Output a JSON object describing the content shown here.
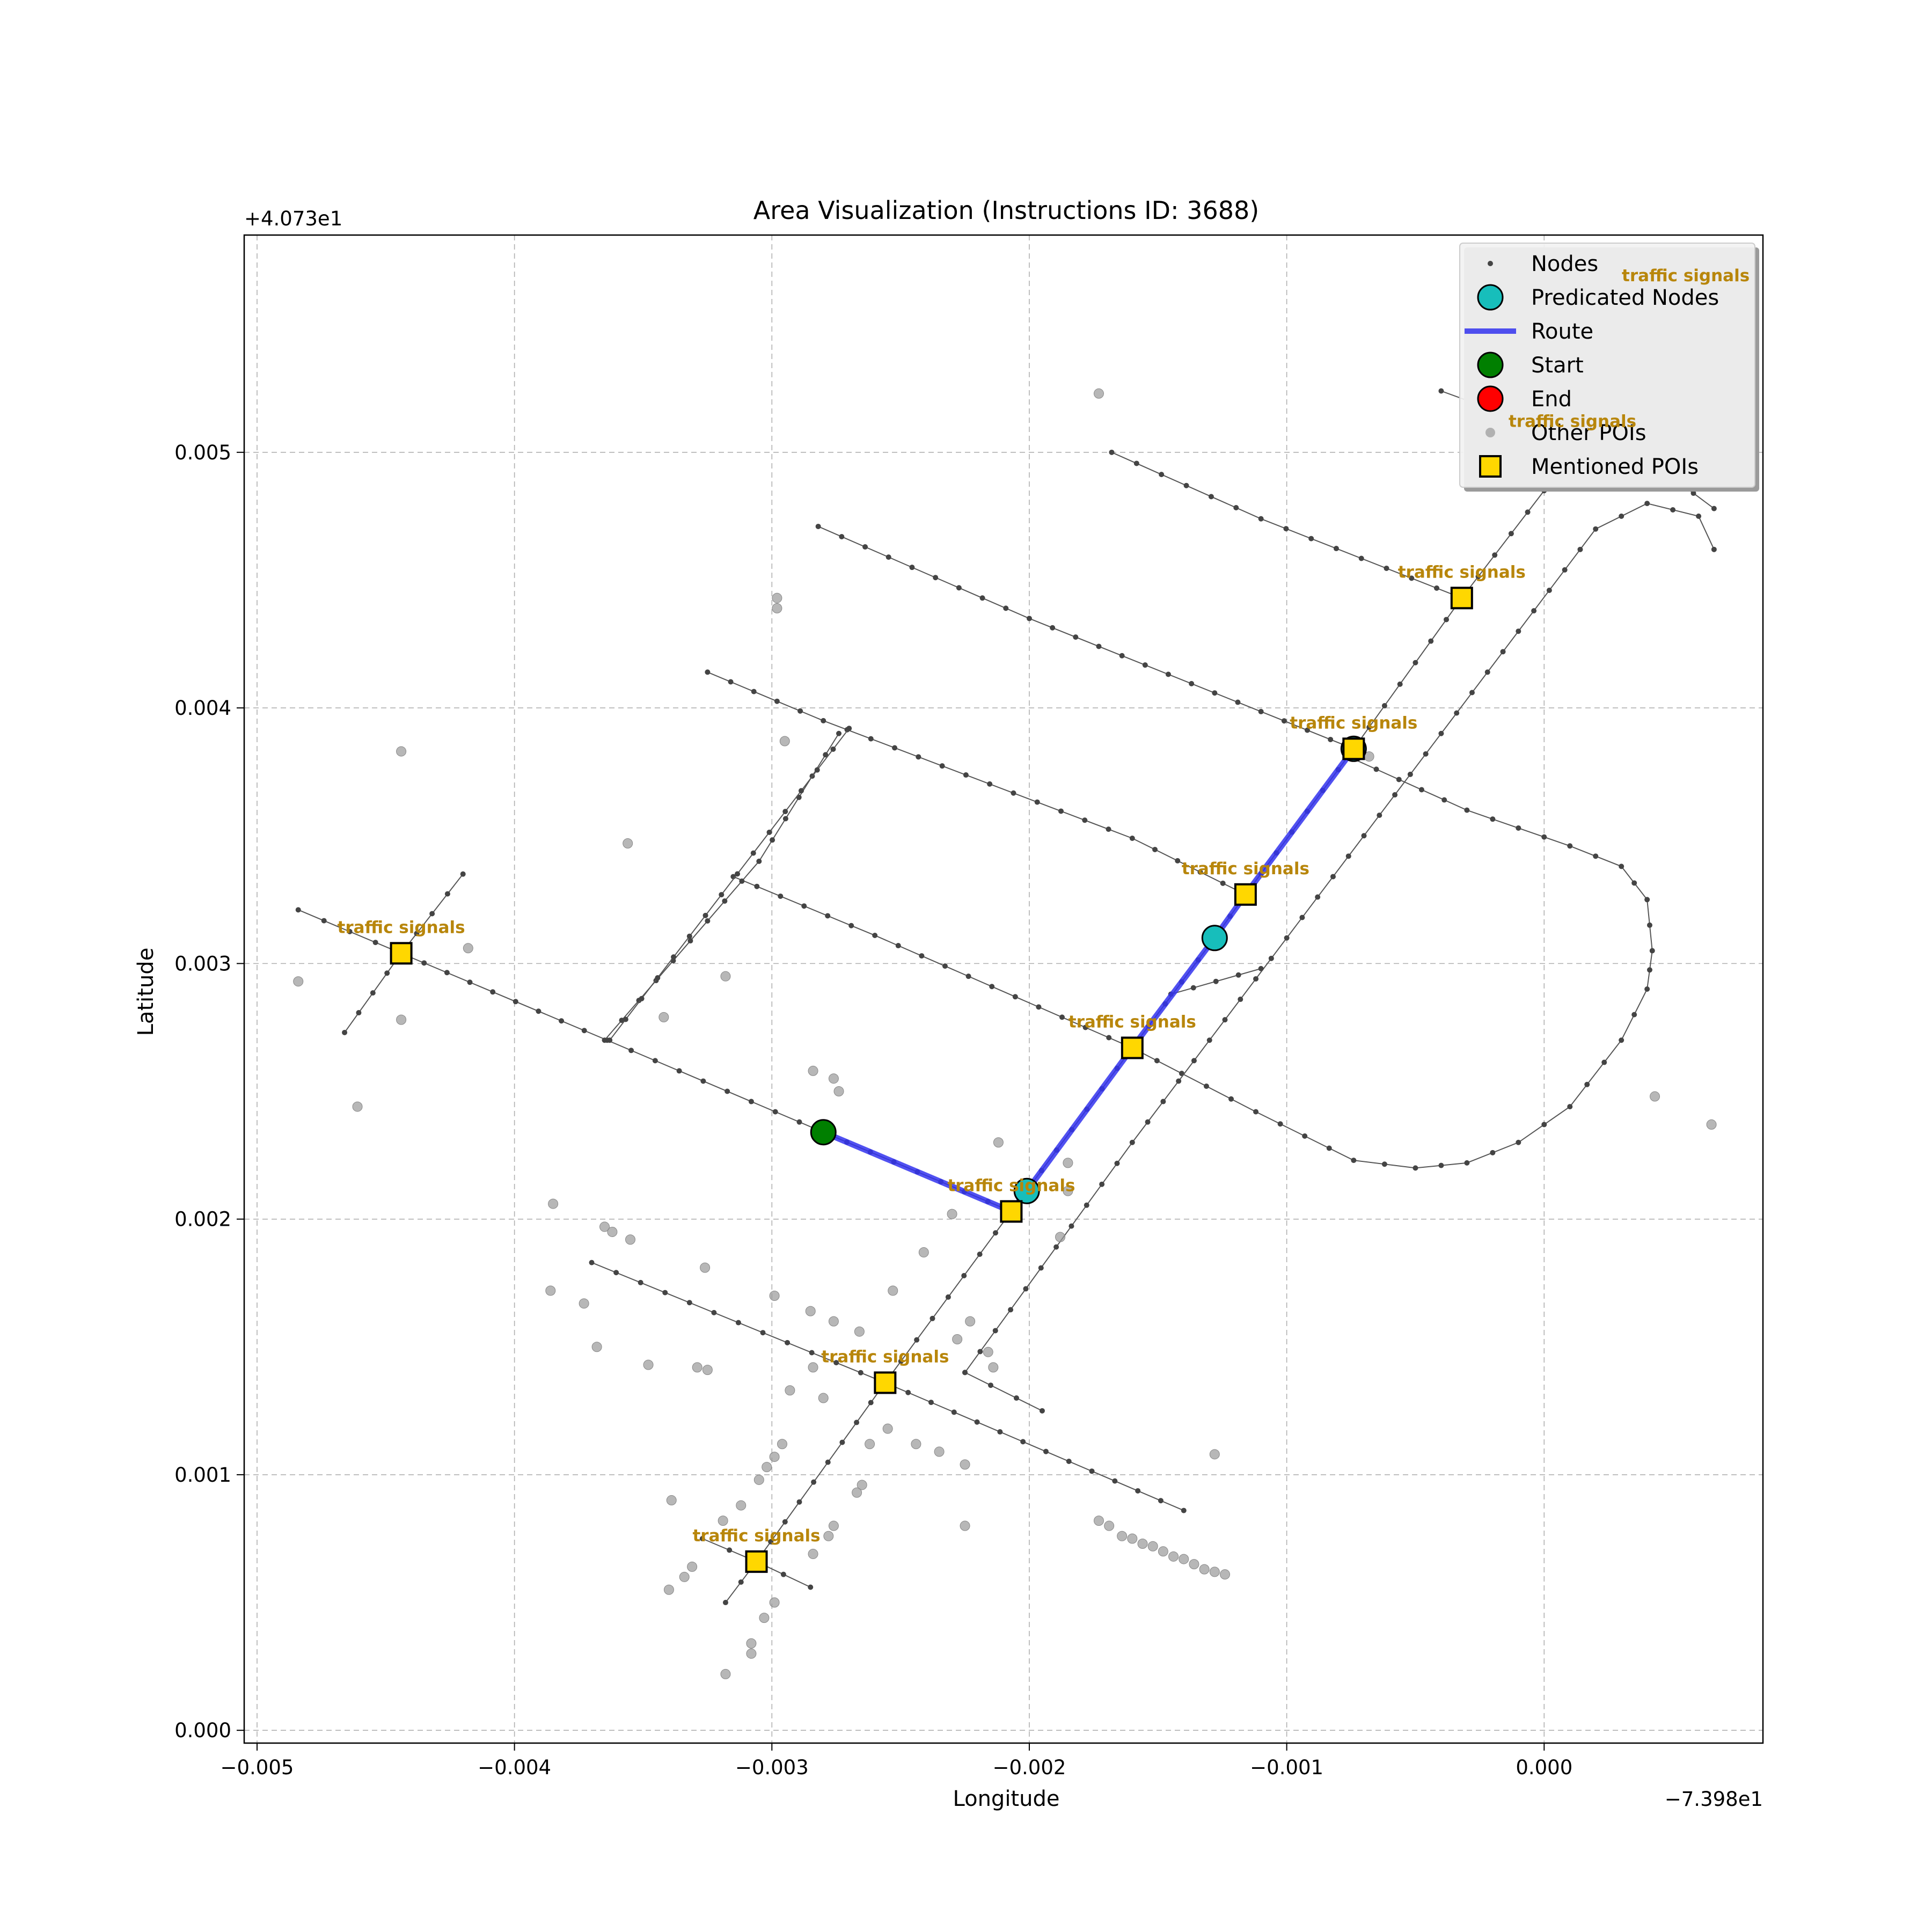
{
  "chart_data": {
    "type": "scatter",
    "title": "Area Visualization (Instructions ID: 3688)",
    "xlabel": "Longitude",
    "ylabel": "Latitude",
    "x_offset_label": "−7.398e1",
    "y_offset_label": "+4.073e1",
    "xlim": [
      -0.00505,
      0.00085
    ],
    "ylim": [
      -5e-05,
      0.00585
    ],
    "xticks": [
      -0.005,
      -0.004,
      -0.003,
      -0.002,
      -0.001,
      0.0
    ],
    "xtick_labels": [
      "−0.005",
      "−0.004",
      "−0.003",
      "−0.002",
      "−0.001",
      "0.000"
    ],
    "yticks": [
      0.0,
      0.001,
      0.002,
      0.003,
      0.004,
      0.005
    ],
    "ytick_labels": [
      "0.000",
      "0.001",
      "0.002",
      "0.003",
      "0.004",
      "0.005"
    ],
    "grid": true,
    "legend_position": "top-right",
    "legend": [
      {
        "label": "Nodes",
        "marker": "small-dot",
        "color": "#444444"
      },
      {
        "label": "Predicated Nodes",
        "marker": "circle",
        "color": "#17bebb"
      },
      {
        "label": "Route",
        "marker": "line",
        "color": "#3333ee"
      },
      {
        "label": "Start",
        "marker": "circle",
        "color": "#007f00"
      },
      {
        "label": "End",
        "marker": "circle",
        "color": "#ff0000"
      },
      {
        "label": "Other POIs",
        "marker": "small-circle",
        "color": "#999999"
      },
      {
        "label": "Mentioned POIs",
        "marker": "square",
        "color": "#ffd700"
      }
    ],
    "road_segments": [
      {
        "name": "street-a",
        "points": [
          [
            -0.00484,
            0.00321
          ],
          [
            -0.00444,
            0.00304
          ],
          [
            -0.00364,
            0.0027
          ],
          [
            -0.0028,
            0.00234
          ],
          [
            -0.00207,
            0.00203
          ]
        ]
      },
      {
        "name": "street-b",
        "points": [
          [
            -0.00315,
            0.00334
          ],
          [
            -0.0026,
            0.00311
          ],
          [
            -0.0016,
            0.00267
          ],
          [
            -0.00112,
            0.00242
          ],
          [
            -0.00074,
            0.00223
          ],
          [
            -0.0005,
            0.0022
          ],
          [
            -0.0003,
            0.00222
          ],
          [
            -0.0001,
            0.0023
          ],
          [
            0.0001,
            0.00244
          ],
          [
            0.0003,
            0.0027
          ],
          [
            0.0004,
            0.0029
          ],
          [
            0.00042,
            0.00305
          ],
          [
            0.0004,
            0.00325
          ],
          [
            0.0003,
            0.00338
          ],
          [
            0.0001,
            0.00346
          ],
          [
            -0.0003,
            0.0036
          ],
          [
            -0.00074,
            0.0038
          ]
        ]
      },
      {
        "name": "street-c",
        "points": [
          [
            -0.00325,
            0.00414
          ],
          [
            -0.0028,
            0.00395
          ],
          [
            -0.0016,
            0.00349
          ],
          [
            -0.00116,
            0.00327
          ]
        ]
      },
      {
        "name": "street-d",
        "points": [
          [
            -0.00282,
            0.00471
          ],
          [
            -0.002,
            0.00435
          ],
          [
            -0.00074,
            0.00384
          ]
        ]
      },
      {
        "name": "street-e",
        "points": [
          [
            -0.00168,
            0.005
          ],
          [
            -0.0011,
            0.00474
          ],
          [
            -0.00032,
            0.00443
          ]
        ]
      },
      {
        "name": "street-f",
        "points": [
          [
            -0.0004,
            0.00524
          ],
          [
            -0.0001,
            0.00513
          ],
          [
            0.00011,
            0.00502
          ],
          [
            0.0005,
            0.0049
          ],
          [
            0.00066,
            0.00478
          ]
        ]
      },
      {
        "name": "street-g",
        "points": [
          [
            -0.0037,
            0.00183
          ],
          [
            -0.00256,
            0.00136
          ],
          [
            -0.0014,
            0.00086
          ]
        ]
      },
      {
        "name": "street-h",
        "points": [
          [
            -0.00327,
            0.00075
          ],
          [
            -0.00306,
            0.00066
          ],
          [
            -0.00285,
            0.00056
          ]
        ]
      },
      {
        "name": "avenue-1",
        "points": [
          [
            -0.00318,
            0.0005
          ],
          [
            -0.00306,
            0.00066
          ],
          [
            -0.00256,
            0.00136
          ],
          [
            -0.00207,
            0.00203
          ],
          [
            -0.0016,
            0.00267
          ],
          [
            -0.00128,
            0.0031
          ],
          [
            -0.00116,
            0.00327
          ],
          [
            -0.00074,
            0.00384
          ],
          [
            -0.00032,
            0.00443
          ],
          [
            0.0,
            0.00485
          ],
          [
            0.0002,
            0.00515
          ],
          [
            0.0005,
            0.00542
          ]
        ]
      },
      {
        "name": "avenue-2",
        "points": [
          [
            -0.00225,
            0.0014
          ],
          [
            -0.0016,
            0.0023
          ],
          [
            -0.001,
            0.0031
          ],
          [
            -0.0004,
            0.0039
          ],
          [
            -0.0001,
            0.0043
          ],
          [
            0.0002,
            0.0047
          ],
          [
            0.0004,
            0.0048
          ],
          [
            0.0006,
            0.00475
          ],
          [
            0.00066,
            0.00462
          ]
        ]
      },
      {
        "name": "cross-2a",
        "points": [
          [
            -0.00365,
            0.0027
          ],
          [
            -0.00305,
            0.0034
          ],
          [
            -0.00274,
            0.0039
          ]
        ]
      },
      {
        "name": "cross-2b",
        "points": [
          [
            -0.00363,
            0.0027
          ],
          [
            -0.0027,
            0.00392
          ]
        ]
      },
      {
        "name": "cross-3",
        "points": [
          [
            -0.00466,
            0.00273
          ],
          [
            -0.00444,
            0.00304
          ],
          [
            -0.0042,
            0.00335
          ]
        ]
      },
      {
        "name": "cross-4",
        "points": [
          [
            -0.00225,
            0.0014
          ],
          [
            -0.00195,
            0.00125
          ]
        ]
      },
      {
        "name": "link-1",
        "points": [
          [
            -0.00145,
            0.00288
          ],
          [
            -0.0011,
            0.00298
          ]
        ]
      }
    ],
    "route": {
      "points": [
        [
          -0.0028,
          0.00234
        ],
        [
          -0.00207,
          0.00203
        ],
        [
          -0.00201,
          0.00211
        ],
        [
          -0.0016,
          0.00267
        ],
        [
          -0.00128,
          0.0031
        ],
        [
          -0.00116,
          0.00327
        ],
        [
          -0.00074,
          0.00384
        ]
      ]
    },
    "start": {
      "x": -0.0028,
      "y": 0.00234
    },
    "end": {
      "x": -0.00201,
      "y": 0.00211
    },
    "predicated_nodes": [
      {
        "x": -0.00201,
        "y": 0.00211
      },
      {
        "x": -0.00128,
        "y": 0.0031
      },
      {
        "x": -0.00074,
        "y": 0.00384
      }
    ],
    "mentioned_pois": [
      {
        "label": "traffic signals",
        "x": -0.00444,
        "y": 0.00304
      },
      {
        "label": "traffic signals",
        "x": -0.00207,
        "y": 0.00203
      },
      {
        "label": "traffic signals",
        "x": -0.0016,
        "y": 0.00267
      },
      {
        "label": "traffic signals",
        "x": -0.00116,
        "y": 0.00327
      },
      {
        "label": "traffic signals",
        "x": -0.00074,
        "y": 0.00384
      },
      {
        "label": "traffic signals",
        "x": -0.00032,
        "y": 0.00443
      },
      {
        "label": "traffic signals",
        "x": 0.00011,
        "y": 0.00502
      },
      {
        "label": "traffic signals",
        "x": 0.00055,
        "y": 0.00559
      },
      {
        "label": "traffic signals",
        "x": -0.00256,
        "y": 0.00136
      },
      {
        "label": "traffic signals",
        "x": -0.00306,
        "y": 0.00066
      }
    ],
    "other_pois": [
      [
        -0.00173,
        0.00523
      ],
      [
        -0.00298,
        0.00443
      ],
      [
        -0.00298,
        0.00439
      ],
      [
        -0.00295,
        0.00387
      ],
      [
        -0.00444,
        0.00383
      ],
      [
        -0.00356,
        0.00347
      ],
      [
        -0.00068,
        0.00381
      ],
      [
        -0.00484,
        0.00293
      ],
      [
        -0.00418,
        0.00306
      ],
      [
        -0.00444,
        0.00278
      ],
      [
        -0.00461,
        0.00244
      ],
      [
        -0.00318,
        0.00295
      ],
      [
        -0.00342,
        0.00279
      ],
      [
        -0.00284,
        0.00258
      ],
      [
        -0.00276,
        0.00255
      ],
      [
        -0.00274,
        0.0025
      ],
      [
        -0.00212,
        0.0023
      ],
      [
        -0.00185,
        0.00222
      ],
      [
        -0.00185,
        0.00211
      ],
      [
        -0.00188,
        0.00193
      ],
      [
        -0.0023,
        0.00202
      ],
      [
        -0.00241,
        0.00187
      ],
      [
        -0.00385,
        0.00206
      ],
      [
        -0.00365,
        0.00197
      ],
      [
        -0.00362,
        0.00195
      ],
      [
        -0.00355,
        0.00192
      ],
      [
        -0.00326,
        0.00181
      ],
      [
        -0.00386,
        0.00172
      ],
      [
        -0.00373,
        0.00167
      ],
      [
        -0.00368,
        0.0015
      ],
      [
        -0.00348,
        0.00143
      ],
      [
        -0.00329,
        0.00142
      ],
      [
        -0.00325,
        0.00141
      ],
      [
        -0.00299,
        0.0017
      ],
      [
        -0.00285,
        0.00164
      ],
      [
        -0.00276,
        0.0016
      ],
      [
        -0.00266,
        0.00156
      ],
      [
        -0.00253,
        0.00172
      ],
      [
        -0.00223,
        0.0016
      ],
      [
        -0.00228,
        0.00153
      ],
      [
        -0.00216,
        0.00148
      ],
      [
        -0.00214,
        0.00142
      ],
      [
        -0.00284,
        0.00142
      ],
      [
        -0.00293,
        0.00133
      ],
      [
        -0.0028,
        0.0013
      ],
      [
        -0.00255,
        0.00118
      ],
      [
        -0.00262,
        0.00112
      ],
      [
        -0.00244,
        0.00112
      ],
      [
        -0.00235,
        0.00109
      ],
      [
        -0.00225,
        0.00104
      ],
      [
        -0.00128,
        0.00108
      ],
      [
        -0.00299,
        0.00107
      ],
      [
        -0.00296,
        0.00112
      ],
      [
        -0.00302,
        0.00103
      ],
      [
        -0.00305,
        0.00098
      ],
      [
        -0.00312,
        0.00088
      ],
      [
        -0.00319,
        0.00082
      ],
      [
        -0.00339,
        0.0009
      ],
      [
        -0.00265,
        0.00096
      ],
      [
        -0.00267,
        0.00093
      ],
      [
        -0.00276,
        0.0008
      ],
      [
        -0.00278,
        0.00076
      ],
      [
        -0.00284,
        0.00069
      ],
      [
        -0.00331,
        0.00064
      ],
      [
        -0.00334,
        0.0006
      ],
      [
        -0.0034,
        0.00055
      ],
      [
        -0.00299,
        0.0005
      ],
      [
        -0.00303,
        0.00044
      ],
      [
        -0.00308,
        0.00034
      ],
      [
        -0.00308,
        0.0003
      ],
      [
        -0.00318,
        0.00022
      ],
      [
        -0.00225,
        0.0008
      ],
      [
        -0.00173,
        0.00082
      ],
      [
        -0.00169,
        0.0008
      ],
      [
        -0.00164,
        0.00076
      ],
      [
        -0.0016,
        0.00075
      ],
      [
        -0.00156,
        0.00073
      ],
      [
        -0.00152,
        0.00072
      ],
      [
        -0.00148,
        0.0007
      ],
      [
        -0.00144,
        0.00068
      ],
      [
        -0.0014,
        0.00067
      ],
      [
        -0.00136,
        0.00065
      ],
      [
        -0.00132,
        0.00063
      ],
      [
        -0.00128,
        0.00062
      ],
      [
        -0.00124,
        0.00061
      ],
      [
        0.00043,
        0.00248
      ],
      [
        0.00065,
        0.00237
      ]
    ]
  }
}
